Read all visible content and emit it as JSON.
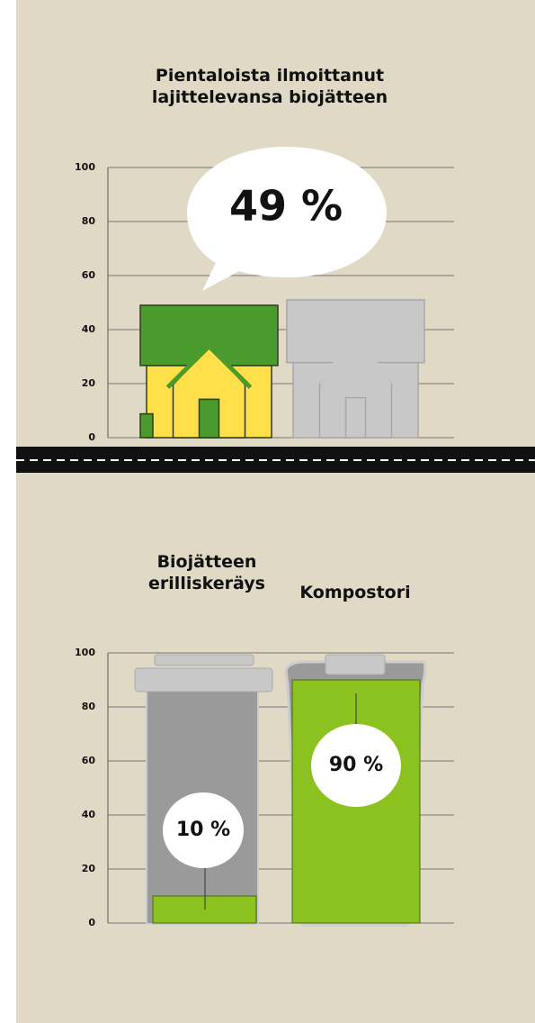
{
  "chart_data": [
    {
      "type": "bar",
      "title": "Pientaloista ilmoittanut lajittelevansa biojätteen",
      "values": [
        49,
        51
      ],
      "value_labels": [
        "49 %",
        null
      ],
      "colors": [
        "#4a9a2e",
        "#c8c8c8"
      ],
      "ylim": [
        0,
        100
      ],
      "yticks": [
        0,
        20,
        40,
        60,
        80,
        100
      ],
      "grid": true
    },
    {
      "type": "bar",
      "categories": [
        "Biojätteen erilliskeräys",
        "Kompostori"
      ],
      "values": [
        10,
        90
      ],
      "value_labels": [
        "10 %",
        "90 %"
      ],
      "color": "#8cc21f",
      "ylim": [
        0,
        100
      ],
      "yticks": [
        0,
        20,
        40,
        60,
        80,
        100
      ],
      "grid": true
    }
  ]
}
